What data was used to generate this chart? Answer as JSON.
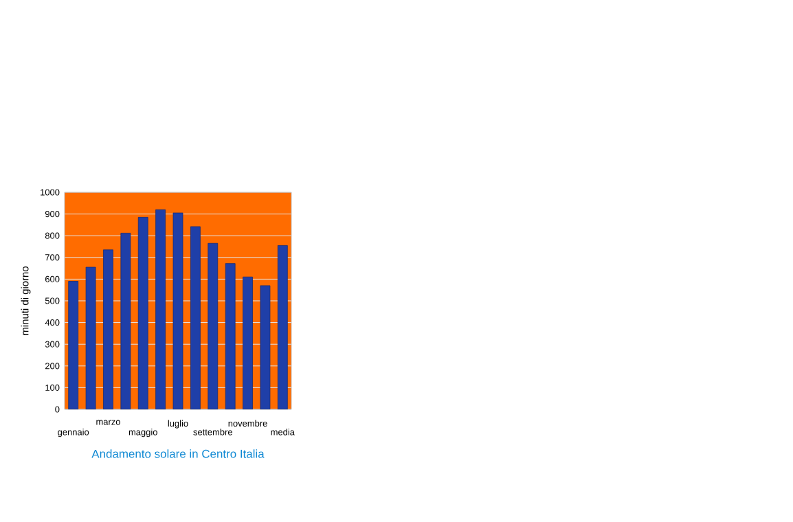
{
  "chart_data": {
    "type": "bar",
    "title": "Andamento solare in Centro Italia",
    "ylabel": "minuti di giorno",
    "categories": [
      "gennaio",
      null,
      "marzo",
      null,
      "maggio",
      null,
      "luglio",
      null,
      "settembre",
      null,
      "novembre",
      null,
      "media"
    ],
    "values": [
      590,
      655,
      735,
      812,
      885,
      920,
      905,
      842,
      765,
      672,
      610,
      570,
      755
    ],
    "color": "#1f3fa8",
    "ylim": [
      0,
      1000
    ],
    "yticks": [
      0,
      100,
      200,
      300,
      400,
      500,
      600,
      700,
      800,
      900,
      1000
    ],
    "grid": "y"
  }
}
